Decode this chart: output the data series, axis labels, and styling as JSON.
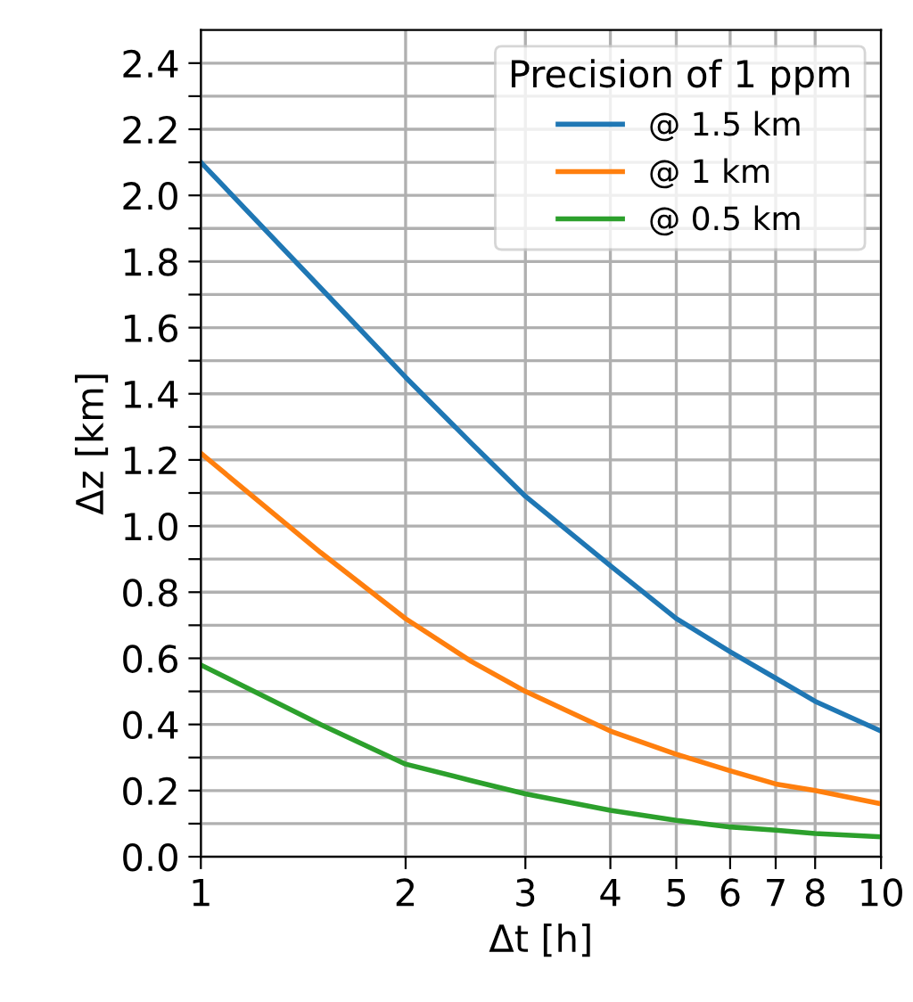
{
  "chart_data": {
    "type": "line",
    "xlabel": "Δt [h]",
    "ylabel": "Δz [km]",
    "legend_title": "Precision of 1 ppm",
    "x": [
      1,
      1.5,
      2,
      2.5,
      3,
      4,
      5,
      6,
      7,
      8,
      10
    ],
    "series": [
      {
        "name": "@ 1.5 km",
        "color": "#1f77b4",
        "values": [
          2.1,
          1.72,
          1.45,
          1.25,
          1.09,
          0.88,
          0.72,
          0.62,
          0.54,
          0.47,
          0.38
        ]
      },
      {
        "name": "@ 1 km",
        "color": "#ff7f0e",
        "values": [
          1.22,
          0.92,
          0.72,
          0.59,
          0.5,
          0.38,
          0.31,
          0.26,
          0.22,
          0.2,
          0.16
        ]
      },
      {
        "name": "@ 0.5 km",
        "color": "#2ca02c",
        "values": [
          0.58,
          0.4,
          0.28,
          0.23,
          0.19,
          0.14,
          0.11,
          0.09,
          0.08,
          0.07,
          0.06
        ]
      }
    ],
    "log": "x",
    "xlim": [
      1,
      10
    ],
    "xticks": [
      1,
      2,
      3,
      4,
      5,
      6,
      7,
      8,
      10
    ],
    "ylim": [
      0,
      2.5
    ],
    "yticks": [
      {
        "value": 0,
        "label": "0.0"
      },
      {
        "value": 0.1,
        "label": null
      },
      0.2,
      {
        "value": 0.3,
        "label": null
      },
      0.4,
      {
        "value": 0.5,
        "label": null
      },
      0.6,
      {
        "value": 0.7,
        "label": null
      },
      0.8,
      {
        "value": 0.9,
        "label": null
      },
      {
        "value": 1,
        "label": "1.0"
      },
      {
        "value": 1.1,
        "label": null
      },
      1.2,
      {
        "value": 1.3,
        "label": null
      },
      1.4,
      {
        "value": 1.5,
        "label": null
      },
      1.6,
      {
        "value": 1.7,
        "label": null
      },
      1.8,
      {
        "value": 1.9,
        "label": null
      },
      {
        "value": 2,
        "label": "2.0"
      },
      {
        "value": 2.1,
        "label": null
      },
      2.2,
      {
        "value": 2.3,
        "label": null
      },
      2.4
    ],
    "grid": true,
    "legend": "top right",
    "marker": "none",
    "line_style": "solid"
  }
}
